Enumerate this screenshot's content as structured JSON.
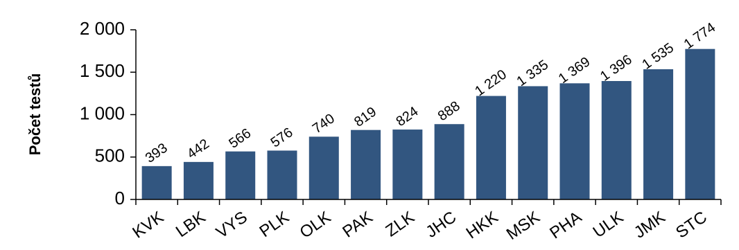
{
  "chart_data": {
    "type": "bar",
    "title": "",
    "xlabel": "",
    "ylabel": "Počet testů",
    "categories": [
      "KVK",
      "LBK",
      "VYS",
      "PLK",
      "OLK",
      "PAK",
      "ZLK",
      "JHC",
      "HKK",
      "MSK",
      "PHA",
      "ULK",
      "JMK",
      "STC"
    ],
    "values": [
      393,
      442,
      566,
      576,
      740,
      819,
      824,
      888,
      1220,
      1335,
      1369,
      1396,
      1535,
      1774
    ],
    "value_labels": [
      "393",
      "442",
      "566",
      "576",
      "740",
      "819",
      "824",
      "888",
      "1 220",
      "1 335",
      "1 369",
      "1 396",
      "1 535",
      "1 774"
    ],
    "ylim": [
      0,
      2000
    ],
    "yticks": [
      0,
      500,
      1000,
      1500,
      2000
    ],
    "ytick_labels": [
      "0",
      "500",
      "1 000",
      "1 500",
      "2 000"
    ],
    "grid": false,
    "legend": "none",
    "bar_color": "#325680"
  }
}
